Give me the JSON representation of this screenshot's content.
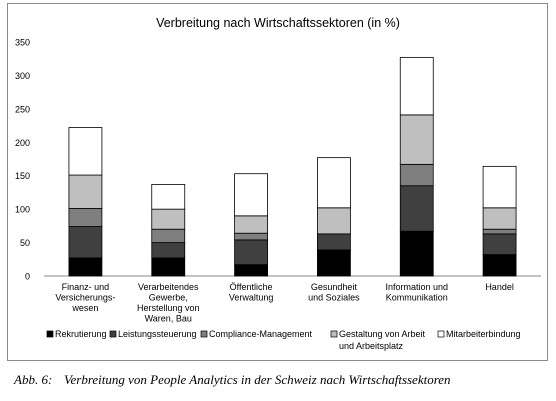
{
  "chart_data": {
    "type": "bar",
    "stacked": true,
    "title": "Verbreitung nach Wirtschaftssektoren (in %)",
    "xlabel": "",
    "ylabel": "",
    "ylim": [
      0,
      350
    ],
    "yticks": [
      0,
      50,
      100,
      150,
      200,
      250,
      300,
      350
    ],
    "grid": false,
    "legend_position": "bottom",
    "categories": [
      [
        "Finanz- und",
        "Versicherungs-",
        "wesen"
      ],
      [
        "Verarbeitendes",
        "Gewerbe,",
        "Herstellung von",
        "Waren, Bau"
      ],
      [
        "Öffentliche",
        "Verwaltung"
      ],
      [
        "Gesundheit",
        "und Soziales"
      ],
      [
        "Information und",
        "Kommunikation"
      ],
      [
        "Handel"
      ]
    ],
    "series": [
      {
        "name": "Rekrutierung",
        "color": "#000000",
        "values": [
          27,
          27,
          17,
          39,
          67,
          32
        ]
      },
      {
        "name": "Leistungssteuerung",
        "color": "#404040",
        "values": [
          47,
          23,
          37,
          24,
          68,
          31
        ]
      },
      {
        "name": "Compliance-Management",
        "color": "#7f7f7f",
        "values": [
          27,
          20,
          10,
          0,
          32,
          7
        ]
      },
      {
        "name": "Gestaltung von Arbeit und Arbeitsplatz",
        "color": "#bfbfbf",
        "values": [
          50,
          30,
          26,
          39,
          74,
          32
        ]
      },
      {
        "name": "Mitarbeiterbindung",
        "color": "#ffffff",
        "values": [
          71,
          37,
          63,
          75,
          86,
          62
        ]
      }
    ]
  },
  "legend": {
    "items": [
      "Rekrutierung",
      "Leistungssteuerung",
      "Compliance-Management",
      "Gestaltung von Arbeit",
      "Mitarbeiterbindung"
    ],
    "continuation": "und Arbeitsplatz"
  },
  "caption": {
    "number": "Abb. 6:",
    "text": "Verbreitung von People Analytics in der Schweiz nach Wirtschaftssektoren"
  }
}
